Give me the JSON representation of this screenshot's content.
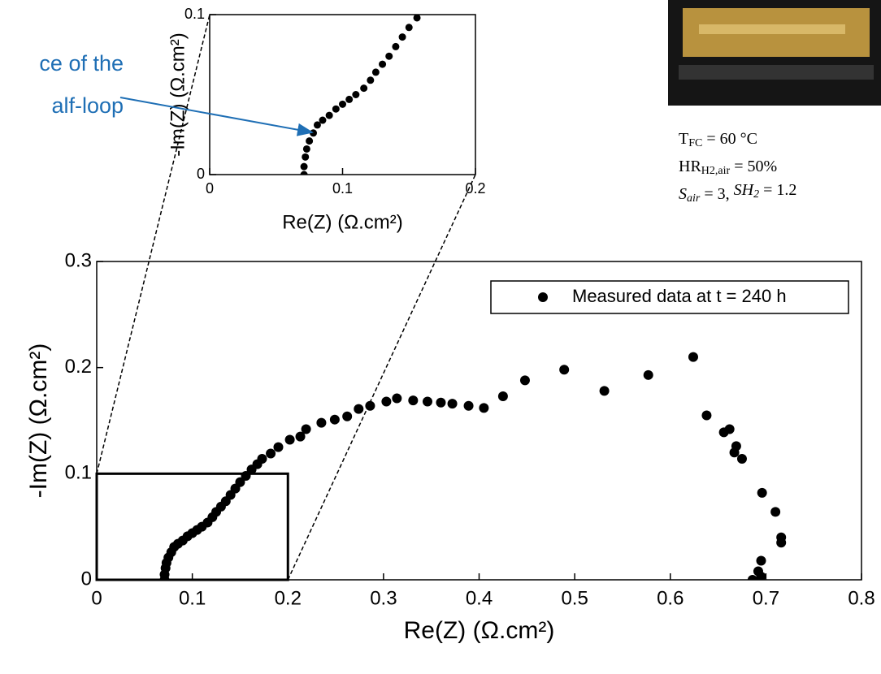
{
  "chart_data": {
    "type": "scatter",
    "xlabel": "Re(Z) (Ω.cm²)",
    "ylabel": "-Im(Z) (Ω.cm²)",
    "xlim": [
      0,
      0.8
    ],
    "ylim": [
      0,
      0.3
    ],
    "xticks": [
      0,
      0.1,
      0.2,
      0.3,
      0.4,
      0.5,
      0.6,
      0.7,
      0.8
    ],
    "yticks": [
      0,
      0.1,
      0.2,
      0.3
    ],
    "legend": "upper right",
    "series": [
      {
        "name": "Measured data at t = 240 h",
        "color": "#000000",
        "x": [
          0.071,
          0.071,
          0.072,
          0.073,
          0.075,
          0.078,
          0.081,
          0.085,
          0.09,
          0.095,
          0.1,
          0.105,
          0.11,
          0.116,
          0.121,
          0.125,
          0.13,
          0.135,
          0.14,
          0.145,
          0.15,
          0.156,
          0.162,
          0.168,
          0.173,
          0.182,
          0.19,
          0.202,
          0.213,
          0.219,
          0.235,
          0.249,
          0.262,
          0.274,
          0.286,
          0.303,
          0.314,
          0.331,
          0.346,
          0.36,
          0.372,
          0.389,
          0.405,
          0.425,
          0.448,
          0.489,
          0.531,
          0.577,
          0.624,
          0.638,
          0.656,
          0.662,
          0.669,
          0.667,
          0.675,
          0.696,
          0.71,
          0.716,
          0.716,
          0.695,
          0.692,
          0.686,
          0.695
        ],
        "values": [
          0,
          0.005,
          0.011,
          0.016,
          0.021,
          0.026,
          0.031,
          0.034,
          0.037,
          0.041,
          0.044,
          0.047,
          0.05,
          0.054,
          0.059,
          0.064,
          0.069,
          0.074,
          0.08,
          0.086,
          0.092,
          0.098,
          0.104,
          0.109,
          0.114,
          0.119,
          0.125,
          0.132,
          0.135,
          0.142,
          0.148,
          0.151,
          0.154,
          0.161,
          0.164,
          0.168,
          0.171,
          0.169,
          0.168,
          0.167,
          0.166,
          0.164,
          0.162,
          0.173,
          0.188,
          0.198,
          0.178,
          0.193,
          0.21,
          0.155,
          0.139,
          0.142,
          0.126,
          0.12,
          0.114,
          0.082,
          0.064,
          0.04,
          0.035,
          0.018,
          0.008,
          0,
          0.003
        ]
      }
    ],
    "inset": {
      "xlabel": "Re(Z) (Ω.cm²)",
      "ylabel": "-Im(Z) (Ω.cm²)",
      "xlim": [
        0,
        0.2
      ],
      "ylim": [
        0,
        0.1
      ],
      "xticks": [
        0,
        0.1,
        0.2
      ],
      "yticks": [
        0,
        0.1
      ]
    },
    "annotation": [
      "ce of the",
      "alf-loop"
    ],
    "conditions": [
      [
        "T",
        "FC",
        " = 60 °C"
      ],
      [
        "HR",
        "H2,air",
        "  = 50%"
      ],
      [
        "S",
        "air",
        "  =  3, ",
        "SH",
        "2",
        " = 1.2"
      ]
    ]
  }
}
